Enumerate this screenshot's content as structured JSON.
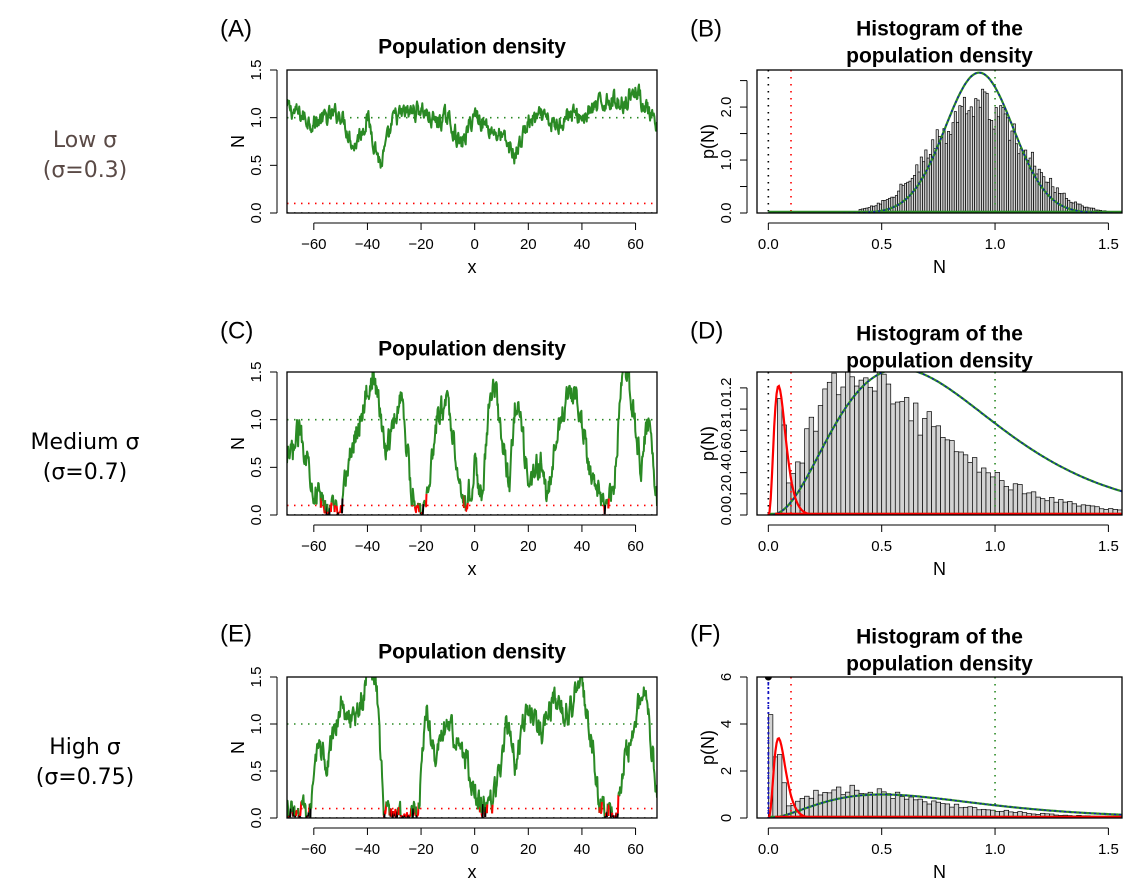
{
  "row_labels": [
    {
      "line1": "Low σ",
      "line2": "(σ=0.3)"
    },
    {
      "line1": "Medium σ",
      "line2": "(σ=0.7)"
    },
    {
      "line1": "High σ",
      "line2": "(σ=0.75)"
    }
  ],
  "colors": {
    "trajectory": "#2a8a24",
    "below_threshold": "#ff0000",
    "extinct": "#000000",
    "histogram_fill": "#d3d3d3",
    "fit_green": "#2a8a24",
    "fit_blue_dotted": "#1010c0",
    "fit_red": "#ff0000"
  },
  "chart_data": [
    {
      "panel": "(A)",
      "type": "line",
      "title": "Population density",
      "xlabel": "x",
      "ylabel": "N",
      "xlim": [
        -70,
        68
      ],
      "ylim": [
        0,
        1.5
      ],
      "xticks": [
        -60,
        -40,
        -20,
        0,
        20,
        40,
        60
      ],
      "yticks": [
        0.0,
        0.5,
        1.0,
        1.5
      ],
      "ytick_labels": [
        "0.0",
        "0.5",
        "1.0",
        "1.5"
      ],
      "reference_lines": [
        {
          "y": 1.0,
          "color": "green",
          "style": "dotted"
        },
        {
          "y": 0.1,
          "color": "red",
          "style": "dotted"
        },
        {
          "y": 0.0,
          "color": "black",
          "style": "dotted"
        }
      ],
      "series": {
        "x": [
          -70,
          -60,
          -50,
          -45,
          -40,
          -35,
          -30,
          -25,
          -20,
          -15,
          -10,
          -5,
          0,
          5,
          10,
          15,
          20,
          25,
          30,
          35,
          40,
          45,
          50,
          55,
          60,
          65,
          68
        ],
        "y": [
          1.1,
          0.95,
          1.05,
          0.7,
          1.0,
          0.5,
          1.0,
          1.05,
          1.1,
          0.95,
          1.0,
          0.7,
          1.05,
          0.9,
          0.8,
          0.6,
          0.95,
          1.0,
          0.9,
          1.05,
          1.0,
          1.1,
          1.2,
          1.15,
          1.3,
          1.05,
          0.85
        ],
        "color": "green",
        "amplitude": 0.1,
        "threshold": 0.1
      }
    },
    {
      "panel": "(B)",
      "type": "bar",
      "title": "Histogram of the population density",
      "xlabel": "N",
      "ylabel": "p(N)",
      "xlim": [
        -0.05,
        1.56
      ],
      "ylim": [
        0,
        2.7
      ],
      "xticks": [
        0.0,
        0.5,
        1.0,
        1.5
      ],
      "xtick_labels": [
        "0.0",
        "0.5",
        "1.0",
        "1.5"
      ],
      "yticks": [
        0.0,
        1.0,
        2.0
      ],
      "ytick_labels": [
        "0.0",
        "1.0",
        "2.0"
      ],
      "yticks_unlabeled": [
        0.5,
        1.5,
        2.5
      ],
      "reference_lines": [
        {
          "x": 0.0,
          "color": "black",
          "style": "dotted"
        },
        {
          "x": 0.1,
          "color": "red",
          "style": "dotted"
        },
        {
          "x": 1.0,
          "color": "green",
          "style": "dotted"
        }
      ],
      "histogram": {
        "bin_width": 0.01,
        "range": [
          0.4,
          1.5
        ],
        "center": 0.92,
        "spread": 0.2,
        "peak": 2.0
      },
      "fit_green": {
        "kind": "normal",
        "mean": 0.93,
        "sd": 0.15,
        "peak": 2.65
      },
      "fit_red": null,
      "spike_at_zero": null
    },
    {
      "panel": "(C)",
      "type": "line",
      "title": "Population density",
      "xlabel": "x",
      "ylabel": "N",
      "xlim": [
        -70,
        68
      ],
      "ylim": [
        0,
        1.5
      ],
      "xticks": [
        -60,
        -40,
        -20,
        0,
        20,
        40,
        60
      ],
      "yticks": [
        0.0,
        0.5,
        1.0,
        1.5
      ],
      "ytick_labels": [
        "0.0",
        "0.5",
        "1.0",
        "1.5"
      ],
      "reference_lines": [
        {
          "y": 1.0,
          "color": "green",
          "style": "dotted"
        },
        {
          "y": 0.1,
          "color": "red",
          "style": "dotted"
        },
        {
          "y": 0.0,
          "color": "black",
          "style": "dotted"
        }
      ],
      "series": {
        "x": [
          -70,
          -65,
          -60,
          -57,
          -52,
          -50,
          -45,
          -38,
          -33,
          -27,
          -24,
          -20,
          -18,
          -14,
          -10,
          -5,
          -3,
          0,
          3,
          5,
          7,
          10,
          13,
          15,
          17,
          20,
          25,
          27,
          30,
          35,
          40,
          43,
          47,
          49,
          52,
          55,
          58,
          62,
          65,
          68
        ],
        "y": [
          0.5,
          0.9,
          0.3,
          0.1,
          0.08,
          0.1,
          0.8,
          1.5,
          0.7,
          1.3,
          0.3,
          0.05,
          0.2,
          1.0,
          1.2,
          0.3,
          0.1,
          0.5,
          0.2,
          1.0,
          1.5,
          0.8,
          0.3,
          1.1,
          1.0,
          0.3,
          0.6,
          0.1,
          0.7,
          1.4,
          1.0,
          0.5,
          0.1,
          0.05,
          0.3,
          1.5,
          1.3,
          0.5,
          1.0,
          0.15
        ],
        "color": "green",
        "amplitude": 0.15,
        "threshold": 0.1
      }
    },
    {
      "panel": "(D)",
      "type": "bar",
      "title": "Histogram of the population density",
      "xlabel": "N",
      "ylabel": "p(N)",
      "xlim": [
        -0.05,
        1.56
      ],
      "ylim": [
        0,
        1.35
      ],
      "xticks": [
        0.0,
        0.5,
        1.0,
        1.5
      ],
      "xtick_labels": [
        "0.0",
        "0.5",
        "1.0",
        "1.5"
      ],
      "yticks": [
        0.0,
        0.2,
        0.4,
        0.6,
        0.8,
        1.0,
        1.2
      ],
      "ytick_labels": [
        "0.0",
        "0.2",
        "0.4",
        "0.6",
        "0.8",
        "1.0",
        "1.2"
      ],
      "yticks_unlabeled": [],
      "reference_lines": [
        {
          "x": 0.0,
          "color": "black",
          "style": "dotted"
        },
        {
          "x": 0.1,
          "color": "red",
          "style": "dotted"
        },
        {
          "x": 1.0,
          "color": "green",
          "style": "dotted"
        }
      ],
      "histogram": {
        "bin_width": 0.02,
        "range": [
          0.04,
          1.56
        ],
        "mode": 0.4,
        "shape": 3.2,
        "peak": 1.3,
        "extra_bins": [
          {
            "x": 0.04,
            "h": 1.1
          },
          {
            "x": 0.06,
            "h": 0.85
          }
        ]
      },
      "fit_green": {
        "kind": "gamma",
        "mode": 0.58,
        "shape": 3.6,
        "peak": 1.38
      },
      "fit_red": {
        "kind": "gamma",
        "mode": 0.045,
        "shape": 4,
        "peak": 1.22
      },
      "spike_at_zero": null
    },
    {
      "panel": "(E)",
      "type": "line",
      "title": "Population density",
      "xlabel": "x",
      "ylabel": "N",
      "xlim": [
        -70,
        68
      ],
      "ylim": [
        0,
        1.5
      ],
      "xticks": [
        -60,
        -40,
        -20,
        0,
        20,
        40,
        60
      ],
      "yticks": [
        0.0,
        0.5,
        1.0,
        1.5
      ],
      "ytick_labels": [
        "0.0",
        "0.5",
        "1.0",
        "1.5"
      ],
      "reference_lines": [
        {
          "y": 1.0,
          "color": "green",
          "style": "dotted"
        },
        {
          "y": 0.1,
          "color": "red",
          "style": "dotted"
        },
        {
          "y": 0.0,
          "color": "black",
          "style": "dotted"
        }
      ],
      "series": {
        "x": [
          -70,
          -65,
          -61,
          -58,
          -55,
          -50,
          -45,
          -40,
          -37,
          -34,
          -30,
          -25,
          -21,
          -18,
          -15,
          -10,
          -5,
          0,
          3,
          5,
          8,
          12,
          15,
          20,
          25,
          30,
          35,
          40,
          45,
          47,
          50,
          53,
          55,
          60,
          63,
          68
        ],
        "y": [
          0.05,
          0.05,
          0.08,
          0.8,
          0.5,
          1.3,
          1.0,
          1.5,
          1.6,
          0.1,
          0.0,
          0.0,
          0.05,
          1.2,
          0.6,
          1.0,
          0.8,
          0.3,
          0.1,
          0.05,
          0.3,
          1.0,
          0.6,
          1.2,
          0.9,
          1.3,
          1.1,
          1.5,
          0.5,
          0.1,
          0.05,
          0.08,
          0.5,
          1.0,
          1.5,
          0.3
        ],
        "color": "green",
        "amplitude": 0.15,
        "threshold": 0.1
      }
    },
    {
      "panel": "(F)",
      "type": "bar",
      "title": "Histogram of the population density",
      "xlabel": "N",
      "ylabel": "p(N)",
      "xlim": [
        -0.05,
        1.56
      ],
      "ylim": [
        0,
        6
      ],
      "xticks": [
        0.0,
        0.5,
        1.0,
        1.5
      ],
      "xtick_labels": [
        "0.0",
        "0.5",
        "1.0",
        "1.5"
      ],
      "yticks": [
        0,
        2,
        4,
        6
      ],
      "ytick_labels": [
        "0",
        "2",
        "4",
        "6"
      ],
      "yticks_unlabeled": [],
      "reference_lines": [
        {
          "x": 0.0,
          "color": "blue",
          "style": "dotted"
        },
        {
          "x": 0.1,
          "color": "red",
          "style": "dotted"
        },
        {
          "x": 1.0,
          "color": "green",
          "style": "dotted"
        }
      ],
      "histogram": {
        "bin_width": 0.02,
        "range": [
          0.0,
          1.56
        ],
        "mode": 0.35,
        "shape": 2.6,
        "peak": 1.2,
        "extra_bins": [
          {
            "x": 0.0,
            "h": 4.4
          },
          {
            "x": 0.02,
            "h": 2.6
          },
          {
            "x": 0.04,
            "h": 2.7
          },
          {
            "x": 0.06,
            "h": 1.5
          }
        ]
      },
      "fit_green": {
        "kind": "gamma",
        "mode": 0.5,
        "shape": 3.0,
        "peak": 1.0
      },
      "fit_red": {
        "kind": "gamma",
        "mode": 0.045,
        "shape": 4,
        "peak": 3.4
      },
      "spike_at_zero": {
        "x": 0.0,
        "y": 6.0
      }
    }
  ]
}
